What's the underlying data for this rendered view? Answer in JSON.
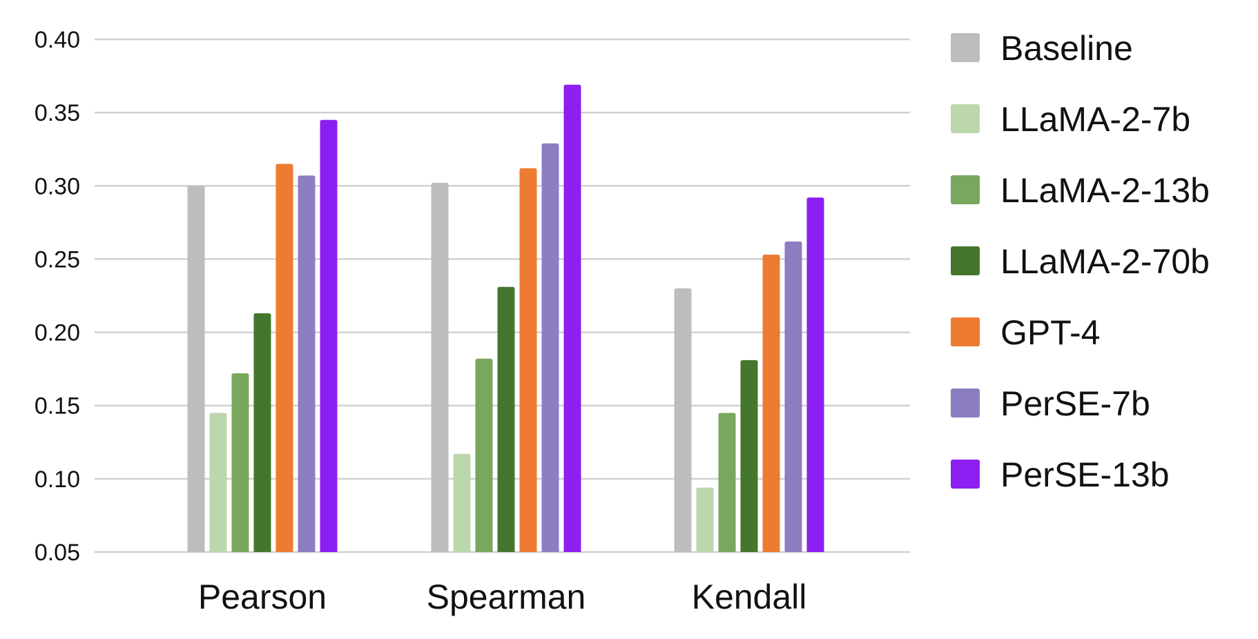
{
  "chart_data": {
    "type": "bar",
    "categories": [
      "Pearson",
      "Spearman",
      "Kendall"
    ],
    "series": [
      {
        "name": "Baseline",
        "color": "#bdbdbd",
        "values": [
          0.3,
          0.302,
          0.23
        ]
      },
      {
        "name": "LLaMA-2-7b",
        "color": "#bdd7ac",
        "values": [
          0.145,
          0.117,
          0.094
        ]
      },
      {
        "name": "LLaMA-2-13b",
        "color": "#79a75e",
        "values": [
          0.172,
          0.182,
          0.145
        ]
      },
      {
        "name": "LLaMA-2-70b",
        "color": "#45762e",
        "values": [
          0.213,
          0.231,
          0.181
        ]
      },
      {
        "name": "GPT-4",
        "color": "#ed7b31",
        "values": [
          0.315,
          0.312,
          0.253
        ]
      },
      {
        "name": "PerSE-7b",
        "color": "#8d7dc1",
        "values": [
          0.307,
          0.329,
          0.262
        ]
      },
      {
        "name": "PerSE-13b",
        "color": "#8c1ff1",
        "values": [
          0.345,
          0.369,
          0.292
        ]
      }
    ],
    "ylim": [
      0.05,
      0.4
    ],
    "yticks": [
      "0.05",
      "0.10",
      "0.15",
      "0.20",
      "0.25",
      "0.30",
      "0.35",
      "0.40"
    ],
    "grid": true,
    "legend_position": "right"
  }
}
